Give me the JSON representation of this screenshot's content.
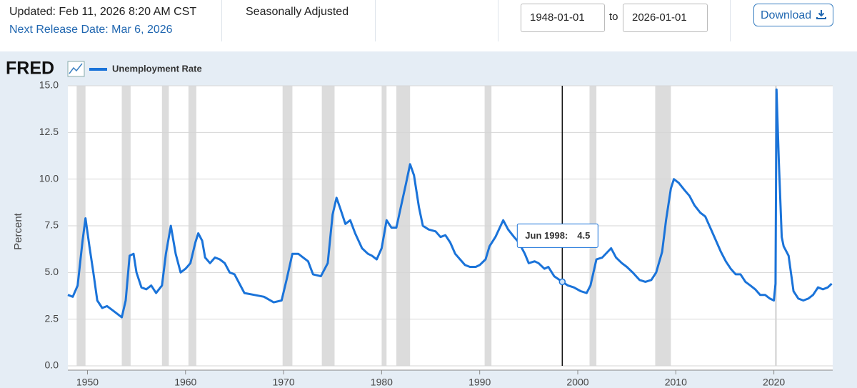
{
  "header": {
    "updated": "Updated: Feb 11, 2026 8:20 AM CST",
    "next_release": "Next Release Date: Mar 6, 2026",
    "adjustment": "Seasonally Adjusted",
    "start_date": "1948-01-01",
    "to": "to",
    "end_date": "2026-01-01",
    "download": "Download"
  },
  "chart_data": {
    "type": "line",
    "logo": "FRED",
    "ylabel": "Percent",
    "x": [
      1948.0,
      1948.5,
      1949.0,
      1949.5,
      1949.8,
      1950.2,
      1950.6,
      1951.0,
      1951.5,
      1952.0,
      1952.5,
      1953.0,
      1953.5,
      1953.9,
      1954.3,
      1954.7,
      1955.0,
      1955.5,
      1956.0,
      1956.5,
      1957.0,
      1957.6,
      1958.0,
      1958.5,
      1959.0,
      1959.5,
      1960.0,
      1960.5,
      1961.0,
      1961.3,
      1961.7,
      1962.0,
      1962.5,
      1963.0,
      1963.5,
      1964.0,
      1964.5,
      1965.0,
      1965.5,
      1966.0,
      1967.0,
      1968.0,
      1969.0,
      1969.8,
      1970.3,
      1970.9,
      1971.5,
      1972.0,
      1972.5,
      1973.0,
      1973.8,
      1974.5,
      1975.0,
      1975.4,
      1975.8,
      1976.3,
      1976.8,
      1977.3,
      1978.0,
      1978.6,
      1979.0,
      1979.5,
      1980.0,
      1980.5,
      1981.0,
      1981.5,
      1982.0,
      1982.5,
      1982.9,
      1983.3,
      1983.8,
      1984.2,
      1984.8,
      1985.5,
      1986.0,
      1986.5,
      1987.0,
      1987.5,
      1988.0,
      1988.5,
      1989.0,
      1989.6,
      1990.0,
      1990.6,
      1991.0,
      1991.6,
      1992.4,
      1992.9,
      1993.5,
      1994.0,
      1994.6,
      1995.0,
      1995.6,
      1996.0,
      1996.6,
      1997.0,
      1997.6,
      1998.42,
      1999.0,
      1999.6,
      2000.3,
      2000.9,
      2001.3,
      2001.9,
      2002.5,
      2003.4,
      2003.9,
      2004.5,
      2005.0,
      2005.6,
      2006.3,
      2006.9,
      2007.5,
      2008.0,
      2008.6,
      2009.0,
      2009.5,
      2009.8,
      2010.3,
      2010.9,
      2011.4,
      2011.9,
      2012.5,
      2013.0,
      2013.6,
      2014.1,
      2014.6,
      2015.1,
      2015.6,
      2016.1,
      2016.6,
      2017.1,
      2017.6,
      2018.1,
      2018.6,
      2019.1,
      2019.6,
      2020.0,
      2020.17,
      2020.27,
      2020.5,
      2020.8,
      2021.0,
      2021.5,
      2022.0,
      2022.5,
      2023.0,
      2023.5,
      2024.0,
      2024.5,
      2025.0,
      2025.5,
      2025.9
    ],
    "series": [
      {
        "name": "Unemployment Rate",
        "color": "#1a73d9",
        "values": [
          3.8,
          3.7,
          4.3,
          6.7,
          7.9,
          6.4,
          5.0,
          3.5,
          3.1,
          3.2,
          3.0,
          2.8,
          2.6,
          3.5,
          5.9,
          6.0,
          5.0,
          4.2,
          4.1,
          4.3,
          3.9,
          4.3,
          6.0,
          7.5,
          6.0,
          5.0,
          5.2,
          5.5,
          6.6,
          7.1,
          6.7,
          5.8,
          5.5,
          5.8,
          5.7,
          5.5,
          5.0,
          4.9,
          4.4,
          3.9,
          3.8,
          3.7,
          3.4,
          3.5,
          4.6,
          6.0,
          6.0,
          5.8,
          5.6,
          4.9,
          4.8,
          5.5,
          8.1,
          9.0,
          8.4,
          7.6,
          7.8,
          7.1,
          6.3,
          6.0,
          5.9,
          5.7,
          6.3,
          7.8,
          7.4,
          7.4,
          8.6,
          9.8,
          10.8,
          10.2,
          8.5,
          7.5,
          7.3,
          7.2,
          6.9,
          7.0,
          6.6,
          6.0,
          5.7,
          5.4,
          5.3,
          5.3,
          5.4,
          5.7,
          6.4,
          6.9,
          7.8,
          7.3,
          6.9,
          6.6,
          6.0,
          5.5,
          5.6,
          5.5,
          5.2,
          5.3,
          4.8,
          4.5,
          4.3,
          4.2,
          4.0,
          3.9,
          4.3,
          5.7,
          5.8,
          6.3,
          5.8,
          5.5,
          5.3,
          5.0,
          4.6,
          4.5,
          4.6,
          5.0,
          6.1,
          7.8,
          9.5,
          10.0,
          9.8,
          9.4,
          9.1,
          8.6,
          8.2,
          8.0,
          7.3,
          6.7,
          6.1,
          5.6,
          5.2,
          4.9,
          4.9,
          4.5,
          4.3,
          4.1,
          3.8,
          3.8,
          3.6,
          3.5,
          4.4,
          14.8,
          11.0,
          6.9,
          6.4,
          5.9,
          4.0,
          3.6,
          3.5,
          3.6,
          3.8,
          4.2,
          4.1,
          4.2,
          4.4
        ]
      }
    ],
    "recessions": [
      [
        1948.9,
        1949.8
      ],
      [
        1953.5,
        1954.4
      ],
      [
        1957.6,
        1958.3
      ],
      [
        1960.3,
        1961.1
      ],
      [
        1969.9,
        1970.9
      ],
      [
        1973.9,
        1975.2
      ],
      [
        1980.0,
        1980.5
      ],
      [
        1981.5,
        1982.9
      ],
      [
        1990.5,
        1991.2
      ],
      [
        2001.2,
        2001.9
      ],
      [
        2007.9,
        2009.5
      ],
      [
        2020.1,
        2020.3
      ]
    ],
    "recession_color": "#dcdcdc",
    "tooltip": {
      "label": "Jun 1998:",
      "value": 4.5
    },
    "xlim": [
      1948.0,
      2026.0
    ],
    "xticks": [
      1950,
      1960,
      1970,
      1980,
      1990,
      2000,
      2010,
      2020
    ],
    "ylim": [
      0,
      15
    ],
    "yticks": [
      {
        "value": 0,
        "label": "0.0"
      },
      2.5,
      {
        "value": 5,
        "label": "5.0"
      },
      7.5,
      {
        "value": 10,
        "label": "10.0"
      },
      12.5,
      {
        "value": 15,
        "label": "15.0"
      }
    ],
    "grid": true
  }
}
